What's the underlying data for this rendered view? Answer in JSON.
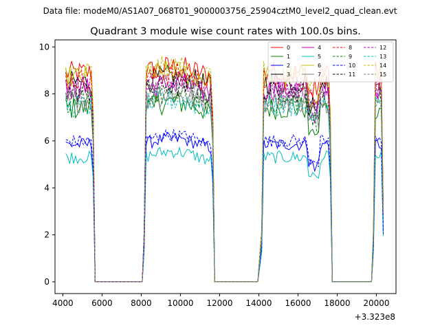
{
  "chart_data": {
    "type": "line",
    "suptitle": "Data file: modeM0/AS1A07_068T01_9000003756_25904cztM0_level2_quad_clean.evt",
    "title": "Quadrant 3 module wise count rates with 100.0s bins.",
    "xlabel": "",
    "ylabel": "",
    "x_offset_label": "+3.323e8",
    "xlim": [
      3600,
      21000
    ],
    "ylim": [
      -0.5,
      10.3
    ],
    "x_ticks": [
      4000,
      6000,
      8000,
      10000,
      12000,
      14000,
      16000,
      18000,
      20000
    ],
    "x_tick_labels": [
      "4000",
      "6000",
      "8000",
      "10000",
      "12000",
      "14000",
      "16000",
      "18000",
      "20000"
    ],
    "y_ticks": [
      0,
      2,
      4,
      6,
      8,
      10
    ],
    "y_tick_labels": [
      "0",
      "2",
      "4",
      "6",
      "8",
      "10"
    ],
    "bin_seconds": 100,
    "segments": [
      {
        "start": 4150,
        "end": 5550
      },
      {
        "start": 8150,
        "end": 11650
      },
      {
        "start": 14150,
        "end": 17650
      },
      {
        "start": 19850,
        "end": 20350
      }
    ],
    "gaps": [
      {
        "start": 5650,
        "end": 8050
      },
      {
        "start": 11750,
        "end": 13950
      },
      {
        "start": 17750,
        "end": 19750
      }
    ],
    "legend_position": "upper right",
    "series": [
      {
        "name": "0",
        "color": "#ff0000",
        "dash": "solid",
        "level": 8.9
      },
      {
        "name": "1",
        "color": "#008000",
        "dash": "solid",
        "level": 7.4
      },
      {
        "name": "2",
        "color": "#0000ff",
        "dash": "solid",
        "level": 5.85
      },
      {
        "name": "3",
        "color": "#000000",
        "dash": "solid",
        "level": 8.5
      },
      {
        "name": "4",
        "color": "#bf00bf",
        "dash": "solid",
        "level": 8.2
      },
      {
        "name": "5",
        "color": "#00bfbf",
        "dash": "solid",
        "level": 5.3
      },
      {
        "name": "6",
        "color": "#bfbf00",
        "dash": "solid",
        "level": 8.7
      },
      {
        "name": "7",
        "color": "#808080",
        "dash": "solid",
        "level": 7.7
      },
      {
        "name": "8",
        "color": "#ff0000",
        "dash": "dashed",
        "level": 8.6
      },
      {
        "name": "9",
        "color": "#008000",
        "dash": "dashed",
        "level": 7.7
      },
      {
        "name": "10",
        "color": "#0000ff",
        "dash": "dashed",
        "level": 6.0
      },
      {
        "name": "11",
        "color": "#000000",
        "dash": "dashed",
        "level": 8.1
      },
      {
        "name": "12",
        "color": "#bf00bf",
        "dash": "dashed",
        "level": 8.3
      },
      {
        "name": "13",
        "color": "#00bfbf",
        "dash": "dashed",
        "level": 7.5
      },
      {
        "name": "14",
        "color": "#bfbf00",
        "dash": "dashed",
        "level": 8.9
      },
      {
        "name": "15",
        "color": "#808080",
        "dash": "dashed",
        "level": 7.9
      }
    ]
  }
}
